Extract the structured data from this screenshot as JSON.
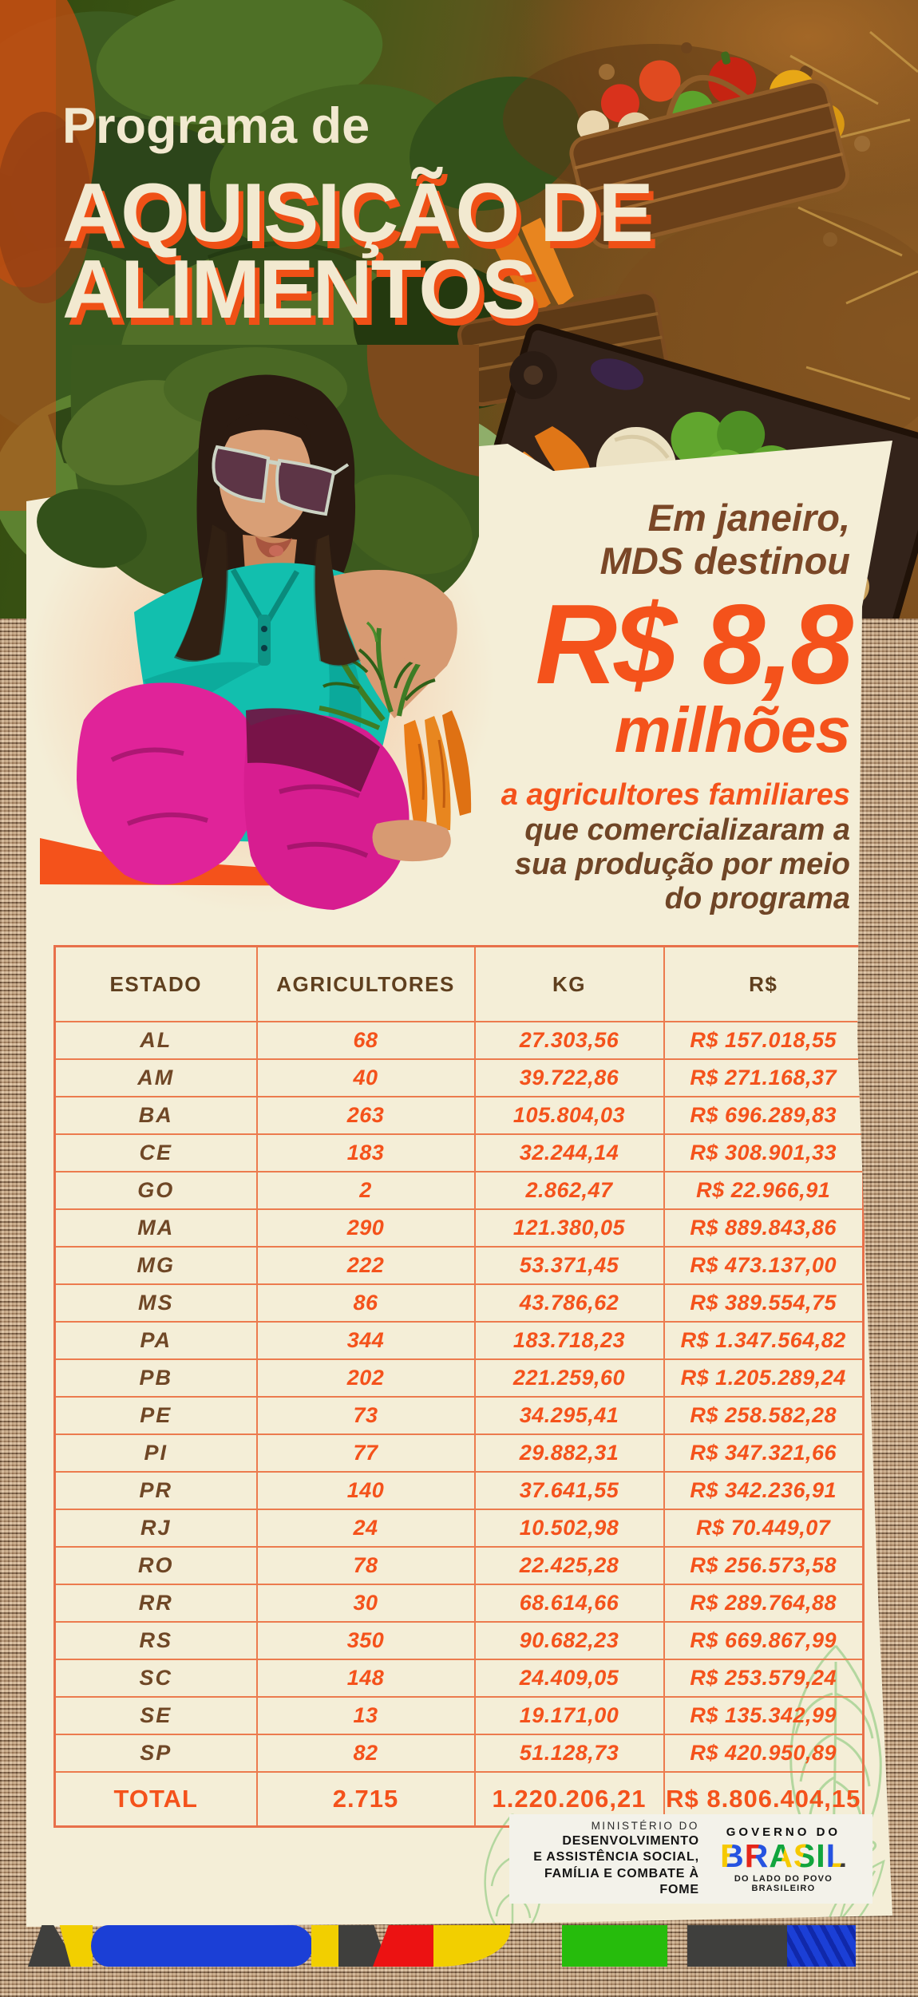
{
  "colors": {
    "accent_orange": "#f4521b",
    "cream": "#f4eed7",
    "brown_text": "#6f4526",
    "table_border": "#ec7b4e",
    "strip_blue": "#1b3fd6",
    "strip_yellow": "#f2cf00",
    "strip_green": "#26bc0c",
    "strip_red": "#ec1212",
    "strip_gray": "#3f3f3d"
  },
  "header": {
    "kicker": "Programa de",
    "title_line1": "AQUISIÇÃO DE",
    "title_line2": "ALIMENTOS"
  },
  "highlight": {
    "intro_line1": "Em janeiro,",
    "intro_line2": "MDS destinou",
    "amount": "R$ 8,8",
    "unit": "milhões",
    "lead_orange": "a agricultores familiares",
    "lead_brown_1": "que comercializaram a",
    "lead_brown_2": "sua produção por meio",
    "lead_brown_3": "do programa"
  },
  "table": {
    "columns": [
      "ESTADO",
      "AGRICULTORES",
      "KG",
      "R$"
    ],
    "rows": [
      {
        "estado": "AL",
        "agricultores": "68",
        "kg": "27.303,56",
        "valor": "R$ 157.018,55"
      },
      {
        "estado": "AM",
        "agricultores": "40",
        "kg": "39.722,86",
        "valor": "R$ 271.168,37"
      },
      {
        "estado": "BA",
        "agricultores": "263",
        "kg": "105.804,03",
        "valor": "R$ 696.289,83"
      },
      {
        "estado": "CE",
        "agricultores": "183",
        "kg": "32.244,14",
        "valor": "R$ 308.901,33"
      },
      {
        "estado": "GO",
        "agricultores": "2",
        "kg": "2.862,47",
        "valor": "R$ 22.966,91"
      },
      {
        "estado": "MA",
        "agricultores": "290",
        "kg": "121.380,05",
        "valor": "R$ 889.843,86"
      },
      {
        "estado": "MG",
        "agricultores": "222",
        "kg": "53.371,45",
        "valor": "R$ 473.137,00"
      },
      {
        "estado": "MS",
        "agricultores": "86",
        "kg": "43.786,62",
        "valor": "R$ 389.554,75"
      },
      {
        "estado": "PA",
        "agricultores": "344",
        "kg": "183.718,23",
        "valor": "R$ 1.347.564,82"
      },
      {
        "estado": "PB",
        "agricultores": "202",
        "kg": "221.259,60",
        "valor": "R$ 1.205.289,24"
      },
      {
        "estado": "PE",
        "agricultores": "73",
        "kg": "34.295,41",
        "valor": "R$ 258.582,28"
      },
      {
        "estado": "PI",
        "agricultores": "77",
        "kg": "29.882,31",
        "valor": "R$ 347.321,66"
      },
      {
        "estado": "PR",
        "agricultores": "140",
        "kg": "37.641,55",
        "valor": "R$ 342.236,91"
      },
      {
        "estado": "RJ",
        "agricultores": "24",
        "kg": "10.502,98",
        "valor": "R$ 70.449,07"
      },
      {
        "estado": "RO",
        "agricultores": "78",
        "kg": "22.425,28",
        "valor": "R$ 256.573,58"
      },
      {
        "estado": "RR",
        "agricultores": "30",
        "kg": "68.614,66",
        "valor": "R$ 289.764,88"
      },
      {
        "estado": "RS",
        "agricultores": "350",
        "kg": "90.682,23",
        "valor": "R$ 669.867,99"
      },
      {
        "estado": "SC",
        "agricultores": "148",
        "kg": "24.409,05",
        "valor": "R$ 253.579,24"
      },
      {
        "estado": "SE",
        "agricultores": "13",
        "kg": "19.171,00",
        "valor": "R$ 135.342,99"
      },
      {
        "estado": "SP",
        "agricultores": "82",
        "kg": "51.128,73",
        "valor": "R$ 420.950,89"
      }
    ],
    "total": {
      "estado": "TOTAL",
      "agricultores": "2.715",
      "kg": "1.220.206,21",
      "valor": "R$ 8.806.404,15"
    }
  },
  "footer": {
    "ministry_line1": "MINISTÉRIO DO",
    "ministry_line2": "DESENVOLVIMENTO",
    "ministry_line3": "E ASSISTÊNCIA SOCIAL,",
    "ministry_line4": "FAMÍLIA E COMBATE À FOME",
    "governo": "GOVERNO DO",
    "brasil": "BRASIL",
    "tagline": "DO LADO DO POVO BRASILEIRO"
  }
}
